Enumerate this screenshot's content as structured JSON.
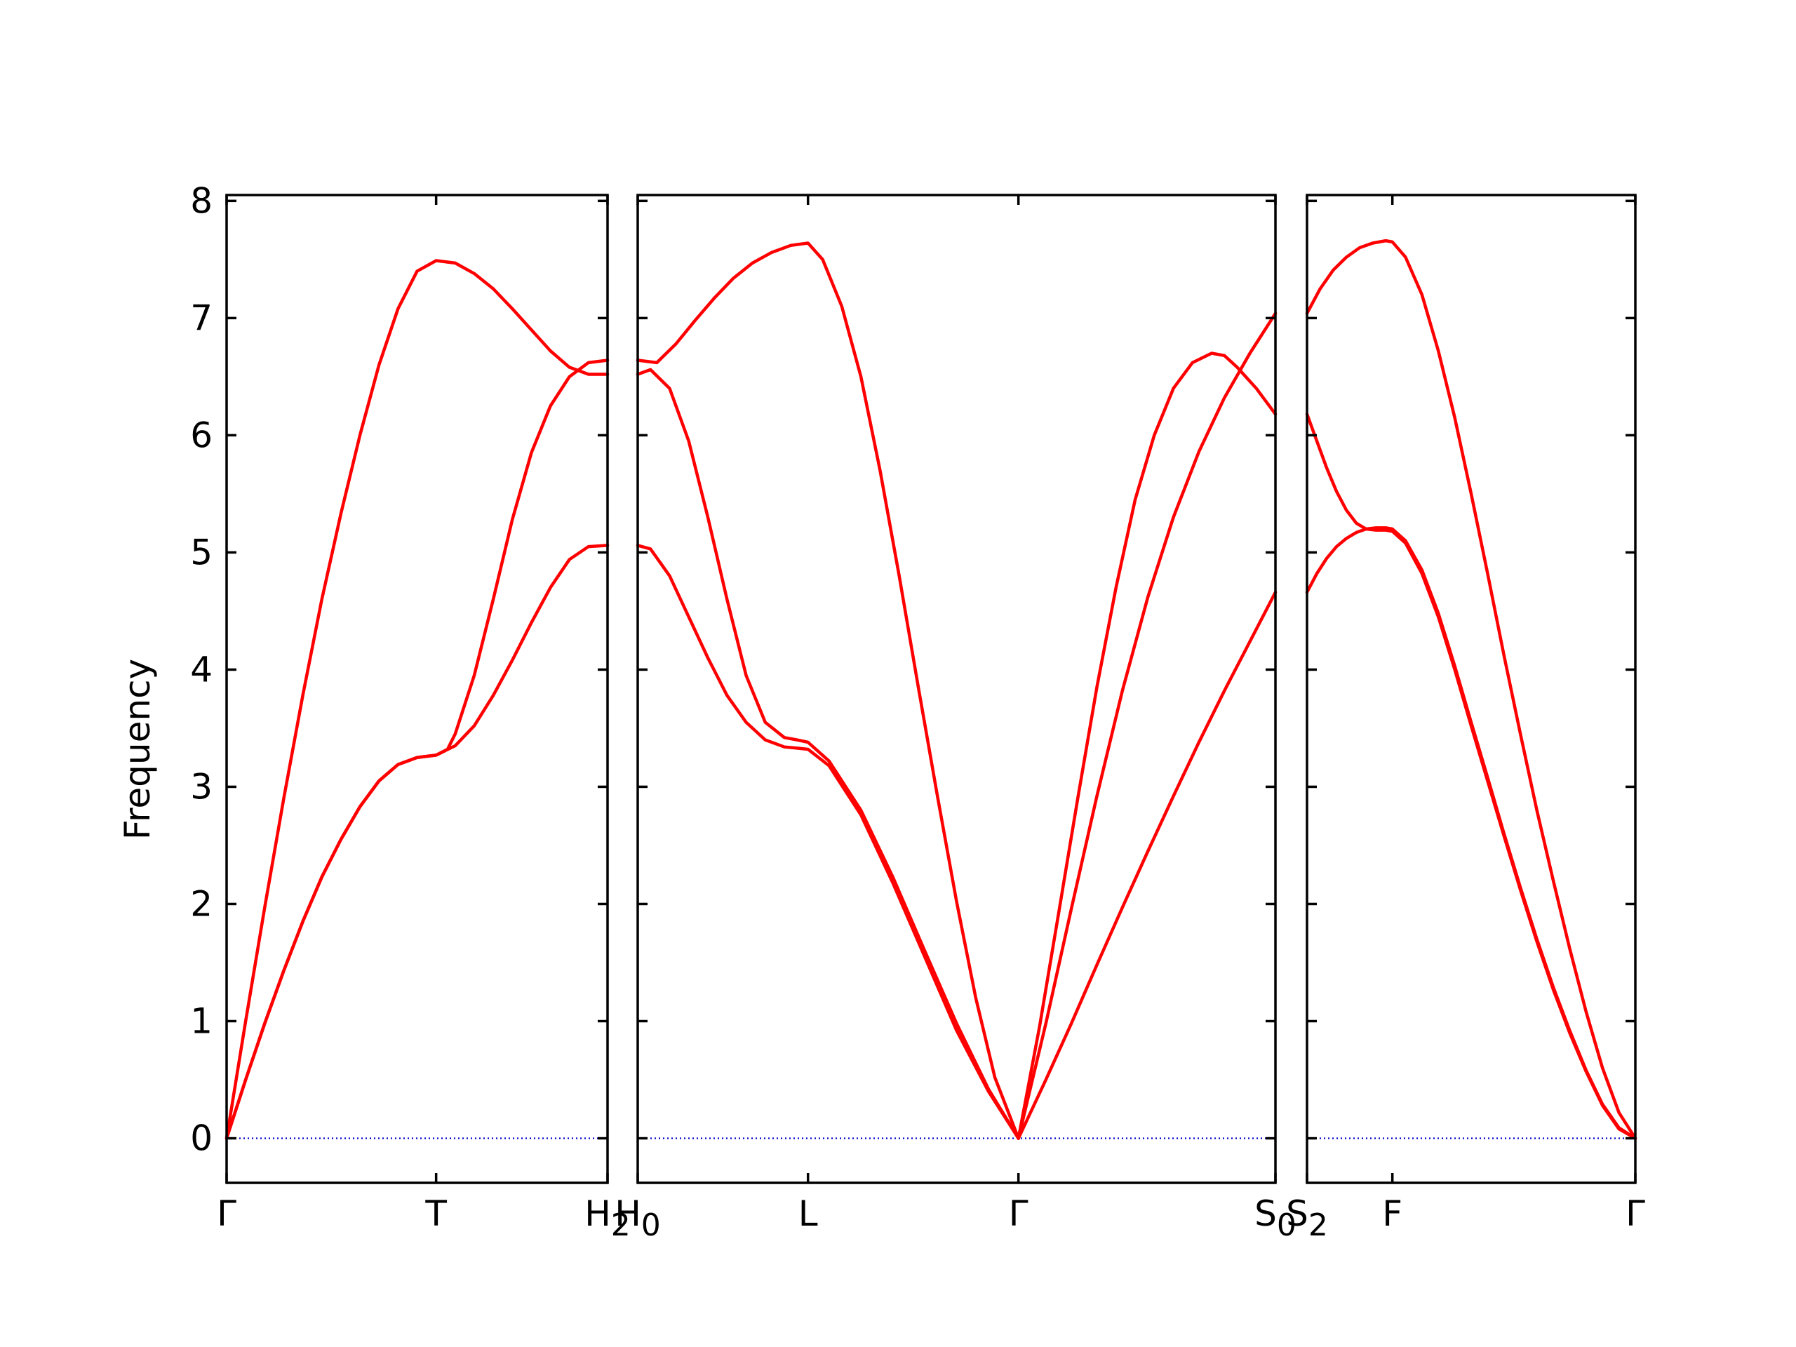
{
  "chart_data": {
    "type": "line",
    "ylabel": "Frequency",
    "ylim": [
      -0.38,
      8.05
    ],
    "yticks": [
      0,
      1,
      2,
      3,
      4,
      5,
      6,
      7,
      8
    ],
    "grid": false,
    "colors": {
      "band": "#ff0000",
      "zero_line": "#0000cc",
      "frame": "#000000"
    },
    "panels": [
      {
        "name": "Γ-T-H2",
        "xlim": [
          0,
          1
        ],
        "xticks": [
          {
            "pos": 0.0,
            "label": "Γ",
            "sub": ""
          },
          {
            "pos": 0.55,
            "label": "T",
            "sub": ""
          },
          {
            "pos": 1.0,
            "label": "H",
            "sub": "2"
          }
        ],
        "series": [
          {
            "x": [
              0,
              0.05,
              0.1,
              0.15,
              0.2,
              0.25,
              0.3,
              0.35,
              0.4,
              0.45,
              0.5,
              0.55,
              0.6,
              0.65,
              0.7,
              0.75,
              0.8,
              0.85,
              0.9,
              0.95,
              1.0
            ],
            "y": [
              0,
              1.0,
              1.97,
              2.9,
              3.78,
              4.6,
              5.33,
              6.0,
              6.6,
              7.08,
              7.4,
              7.49,
              7.47,
              7.38,
              7.25,
              7.08,
              6.9,
              6.72,
              6.58,
              6.52,
              6.52
            ]
          },
          {
            "x": [
              0,
              0.05,
              0.1,
              0.15,
              0.2,
              0.25,
              0.3,
              0.35,
              0.4,
              0.45,
              0.5,
              0.55,
              0.58,
              0.6,
              0.65,
              0.7,
              0.75,
              0.8,
              0.85,
              0.9,
              0.95,
              1.0
            ],
            "y": [
              0,
              0.5,
              0.98,
              1.43,
              1.85,
              2.23,
              2.55,
              2.83,
              3.05,
              3.19,
              3.25,
              3.27,
              3.32,
              3.45,
              3.95,
              4.6,
              5.28,
              5.85,
              6.25,
              6.5,
              6.62,
              6.64
            ]
          },
          {
            "x": [
              0,
              0.05,
              0.1,
              0.15,
              0.2,
              0.25,
              0.3,
              0.35,
              0.4,
              0.45,
              0.5,
              0.55,
              0.6,
              0.65,
              0.7,
              0.75,
              0.8,
              0.85,
              0.9,
              0.95,
              1.0
            ],
            "y": [
              0,
              0.5,
              0.98,
              1.43,
              1.85,
              2.23,
              2.55,
              2.83,
              3.05,
              3.19,
              3.25,
              3.27,
              3.35,
              3.52,
              3.78,
              4.08,
              4.4,
              4.7,
              4.94,
              5.05,
              5.06
            ]
          }
        ]
      },
      {
        "name": "H0-L-Γ-S0",
        "xlim": [
          0,
          1
        ],
        "xticks": [
          {
            "pos": 0.0,
            "label": "H",
            "sub": "0"
          },
          {
            "pos": 0.267,
            "label": "L",
            "sub": ""
          },
          {
            "pos": 0.597,
            "label": "Γ",
            "sub": ""
          },
          {
            "pos": 1.0,
            "label": "S",
            "sub": "0"
          }
        ],
        "series": [
          {
            "x": [
              0,
              0.03,
              0.06,
              0.09,
              0.12,
              0.15,
              0.18,
              0.21,
              0.24,
              0.267,
              0.29,
              0.32,
              0.35,
              0.38,
              0.41,
              0.44,
              0.47,
              0.5,
              0.53,
              0.56,
              0.597
            ],
            "y": [
              6.64,
              6.62,
              6.78,
              6.98,
              7.17,
              7.34,
              7.47,
              7.56,
              7.62,
              7.64,
              7.5,
              7.1,
              6.5,
              5.7,
              4.8,
              3.85,
              2.92,
              2.02,
              1.2,
              0.52,
              0
            ]
          },
          {
            "x": [
              0,
              0.02,
              0.05,
              0.08,
              0.11,
              0.14,
              0.17,
              0.2,
              0.23,
              0.25,
              0.267,
              0.3,
              0.35,
              0.4,
              0.45,
              0.5,
              0.55,
              0.597
            ],
            "y": [
              6.52,
              6.56,
              6.4,
              5.95,
              5.3,
              4.6,
              3.95,
              3.55,
              3.42,
              3.4,
              3.38,
              3.22,
              2.8,
              2.23,
              1.6,
              0.98,
              0.42,
              0
            ]
          },
          {
            "x": [
              0,
              0.02,
              0.05,
              0.08,
              0.11,
              0.14,
              0.17,
              0.2,
              0.23,
              0.25,
              0.267,
              0.3,
              0.35,
              0.4,
              0.45,
              0.5,
              0.55,
              0.597
            ],
            "y": [
              5.06,
              5.03,
              4.8,
              4.45,
              4.1,
              3.78,
              3.55,
              3.4,
              3.34,
              3.33,
              3.32,
              3.18,
              2.76,
              2.18,
              1.55,
              0.92,
              0.4,
              0
            ]
          },
          {
            "x": [
              0.597,
              0.63,
              0.66,
              0.69,
              0.72,
              0.75,
              0.78,
              0.81,
              0.84,
              0.87,
              0.9,
              0.92,
              0.94,
              0.97,
              1.0
            ],
            "y": [
              0,
              0.95,
              1.92,
              2.9,
              3.85,
              4.7,
              5.45,
              6.0,
              6.4,
              6.62,
              6.7,
              6.68,
              6.58,
              6.4,
              6.18
            ]
          },
          {
            "x": [
              0.597,
              0.64,
              0.68,
              0.72,
              0.76,
              0.8,
              0.84,
              0.88,
              0.92,
              0.96,
              1.0
            ],
            "y": [
              0,
              0.98,
              1.96,
              2.92,
              3.82,
              4.62,
              5.3,
              5.86,
              6.32,
              6.7,
              7.04
            ]
          },
          {
            "x": [
              0.597,
              0.64,
              0.68,
              0.72,
              0.76,
              0.8,
              0.84,
              0.88,
              0.92,
              0.96,
              1.0
            ],
            "y": [
              0,
              0.5,
              0.98,
              1.48,
              1.97,
              2.45,
              2.92,
              3.38,
              3.82,
              4.24,
              4.66
            ]
          }
        ]
      },
      {
        "name": "S2-F-Γ",
        "xlim": [
          0,
          1
        ],
        "xticks": [
          {
            "pos": 0.0,
            "label": "S",
            "sub": "2"
          },
          {
            "pos": 0.26,
            "label": "F",
            "sub": ""
          },
          {
            "pos": 1.0,
            "label": "Γ",
            "sub": ""
          }
        ],
        "series": [
          {
            "x": [
              0,
              0.04,
              0.08,
              0.12,
              0.16,
              0.2,
              0.24,
              0.26,
              0.3,
              0.35,
              0.4,
              0.45,
              0.5,
              0.55,
              0.6,
              0.65,
              0.7,
              0.75,
              0.8,
              0.85,
              0.9,
              0.95,
              1.0
            ],
            "y": [
              7.04,
              7.25,
              7.41,
              7.52,
              7.6,
              7.64,
              7.66,
              7.65,
              7.52,
              7.2,
              6.72,
              6.15,
              5.5,
              4.82,
              4.12,
              3.45,
              2.8,
              2.2,
              1.62,
              1.08,
              0.6,
              0.22,
              0
            ]
          },
          {
            "x": [
              0,
              0.03,
              0.06,
              0.09,
              0.12,
              0.15,
              0.18,
              0.21,
              0.24,
              0.26,
              0.3,
              0.35,
              0.4,
              0.45,
              0.5,
              0.55,
              0.6,
              0.65,
              0.7,
              0.75,
              0.8,
              0.85,
              0.9,
              0.95,
              1.0
            ],
            "y": [
              6.18,
              5.95,
              5.72,
              5.52,
              5.36,
              5.25,
              5.2,
              5.19,
              5.19,
              5.18,
              5.08,
              4.82,
              4.45,
              4.0,
              3.52,
              3.05,
              2.58,
              2.12,
              1.68,
              1.27,
              0.9,
              0.57,
              0.28,
              0.08,
              0
            ]
          },
          {
            "x": [
              0,
              0.03,
              0.06,
              0.09,
              0.12,
              0.15,
              0.18,
              0.21,
              0.24,
              0.26,
              0.3,
              0.35,
              0.4,
              0.45,
              0.5,
              0.55,
              0.6,
              0.65,
              0.7,
              0.75,
              0.8,
              0.85,
              0.9,
              0.95,
              1.0
            ],
            "y": [
              4.66,
              4.82,
              4.95,
              5.05,
              5.12,
              5.17,
              5.2,
              5.21,
              5.21,
              5.2,
              5.1,
              4.85,
              4.48,
              4.03,
              3.55,
              3.08,
              2.6,
              2.14,
              1.7,
              1.29,
              0.92,
              0.58,
              0.29,
              0.09,
              0
            ]
          }
        ]
      }
    ]
  }
}
